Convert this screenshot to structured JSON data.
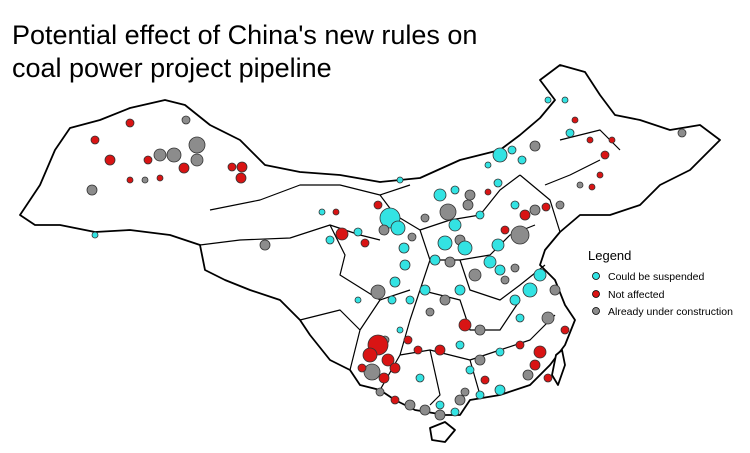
{
  "title": [
    "Potential effect of China's new rules on",
    "coal power project pipeline"
  ],
  "legend": {
    "title": "Legend",
    "items": [
      {
        "label": "Could be suspended",
        "color": "#33e3e3"
      },
      {
        "label": "Not affected",
        "color": "#d91414"
      },
      {
        "label": "Already under construction",
        "color": "#8c8c8c"
      }
    ]
  }
}
